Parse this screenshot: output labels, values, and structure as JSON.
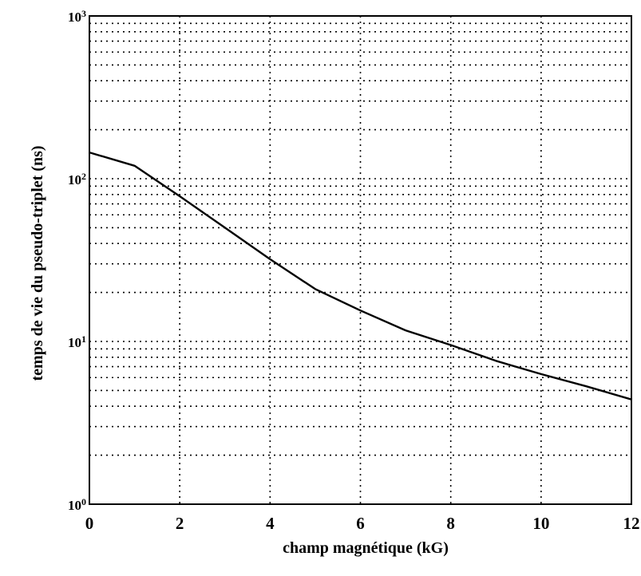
{
  "chart_data": {
    "type": "line",
    "xlabel": "champ magnétique (kG)",
    "ylabel": "temps de vie du pseudo-triplet (ns)",
    "xlim": [
      0,
      12
    ],
    "ylim": [
      1,
      1000
    ],
    "yscale": "log",
    "grid": true,
    "x_ticks": [
      {
        "value": 0,
        "label": "0"
      },
      {
        "value": 2,
        "label": "2"
      },
      {
        "value": 4,
        "label": "4"
      },
      {
        "value": 6,
        "label": "6"
      },
      {
        "value": 8,
        "label": "8"
      },
      {
        "value": 10,
        "label": "10"
      },
      {
        "value": 12,
        "label": "12"
      }
    ],
    "y_ticks": [
      {
        "value": 1,
        "base": "10",
        "exp": "0"
      },
      {
        "value": 10,
        "base": "10",
        "exp": "1"
      },
      {
        "value": 100,
        "base": "10",
        "exp": "2"
      },
      {
        "value": 1000,
        "base": "10",
        "exp": "3"
      }
    ],
    "series": [
      {
        "x": [
          0,
          1,
          2,
          3,
          4,
          5,
          6,
          7,
          8,
          9,
          10,
          11,
          12
        ],
        "y": [
          145,
          120,
          78,
          50,
          32,
          21,
          15.5,
          11.7,
          9.5,
          7.6,
          6.3,
          5.3,
          4.4
        ]
      }
    ]
  }
}
